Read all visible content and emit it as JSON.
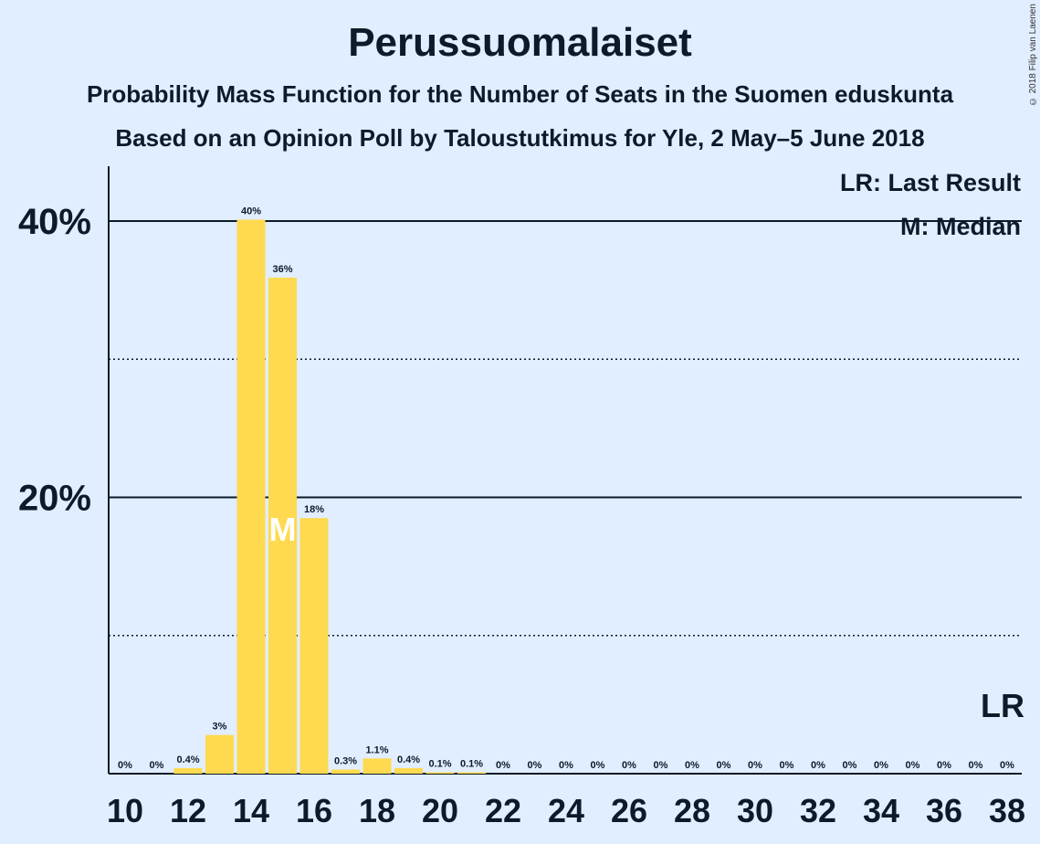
{
  "copyright": "© 2018 Filip van Laenen",
  "chart_data": {
    "type": "bar",
    "title": "Perussuomalaiset",
    "subtitle": "Probability Mass Function for the Number of Seats in the Suomen eduskunta",
    "subtitle2": "Based on an Opinion Poll by Taloustutkimus for Yle, 2 May–5 June 2018",
    "x": [
      10,
      11,
      12,
      13,
      14,
      15,
      16,
      17,
      18,
      19,
      20,
      21,
      22,
      23,
      24,
      25,
      26,
      27,
      28,
      29,
      30,
      31,
      32,
      33,
      34,
      35,
      36,
      37,
      38
    ],
    "values": [
      0,
      0,
      0.4,
      2.8,
      40.1,
      35.9,
      18.5,
      0.3,
      1.1,
      0.4,
      0.1,
      0.1,
      0,
      0,
      0,
      0,
      0,
      0,
      0,
      0,
      0,
      0,
      0,
      0,
      0,
      0,
      0,
      0,
      0
    ],
    "labels": [
      "0%",
      "0%",
      "0.4%",
      "3%",
      "40%",
      "36%",
      "18%",
      "0.3%",
      "1.1%",
      "0.4%",
      "0.1%",
      "0.1%",
      "0%",
      "0%",
      "0%",
      "0%",
      "0%",
      "0%",
      "0%",
      "0%",
      "0%",
      "0%",
      "0%",
      "0%",
      "0%",
      "0%",
      "0%",
      "0%",
      "0%"
    ],
    "xticks": [
      "10",
      "12",
      "14",
      "16",
      "18",
      "20",
      "22",
      "24",
      "26",
      "28",
      "30",
      "32",
      "34",
      "36",
      "38"
    ],
    "yticks": [
      {
        "value": 20,
        "label": "20%"
      },
      {
        "value": 40,
        "label": "40%"
      }
    ],
    "dotted_gridlines": [
      10,
      30
    ],
    "ylim": [
      0,
      44
    ],
    "median_seat": 15,
    "median_marker": "M",
    "last_result_marker": "LR",
    "legend": [
      "LR: Last Result",
      "M: Median"
    ],
    "legend_position": "top-right",
    "bar_color": "#ffd94f"
  }
}
